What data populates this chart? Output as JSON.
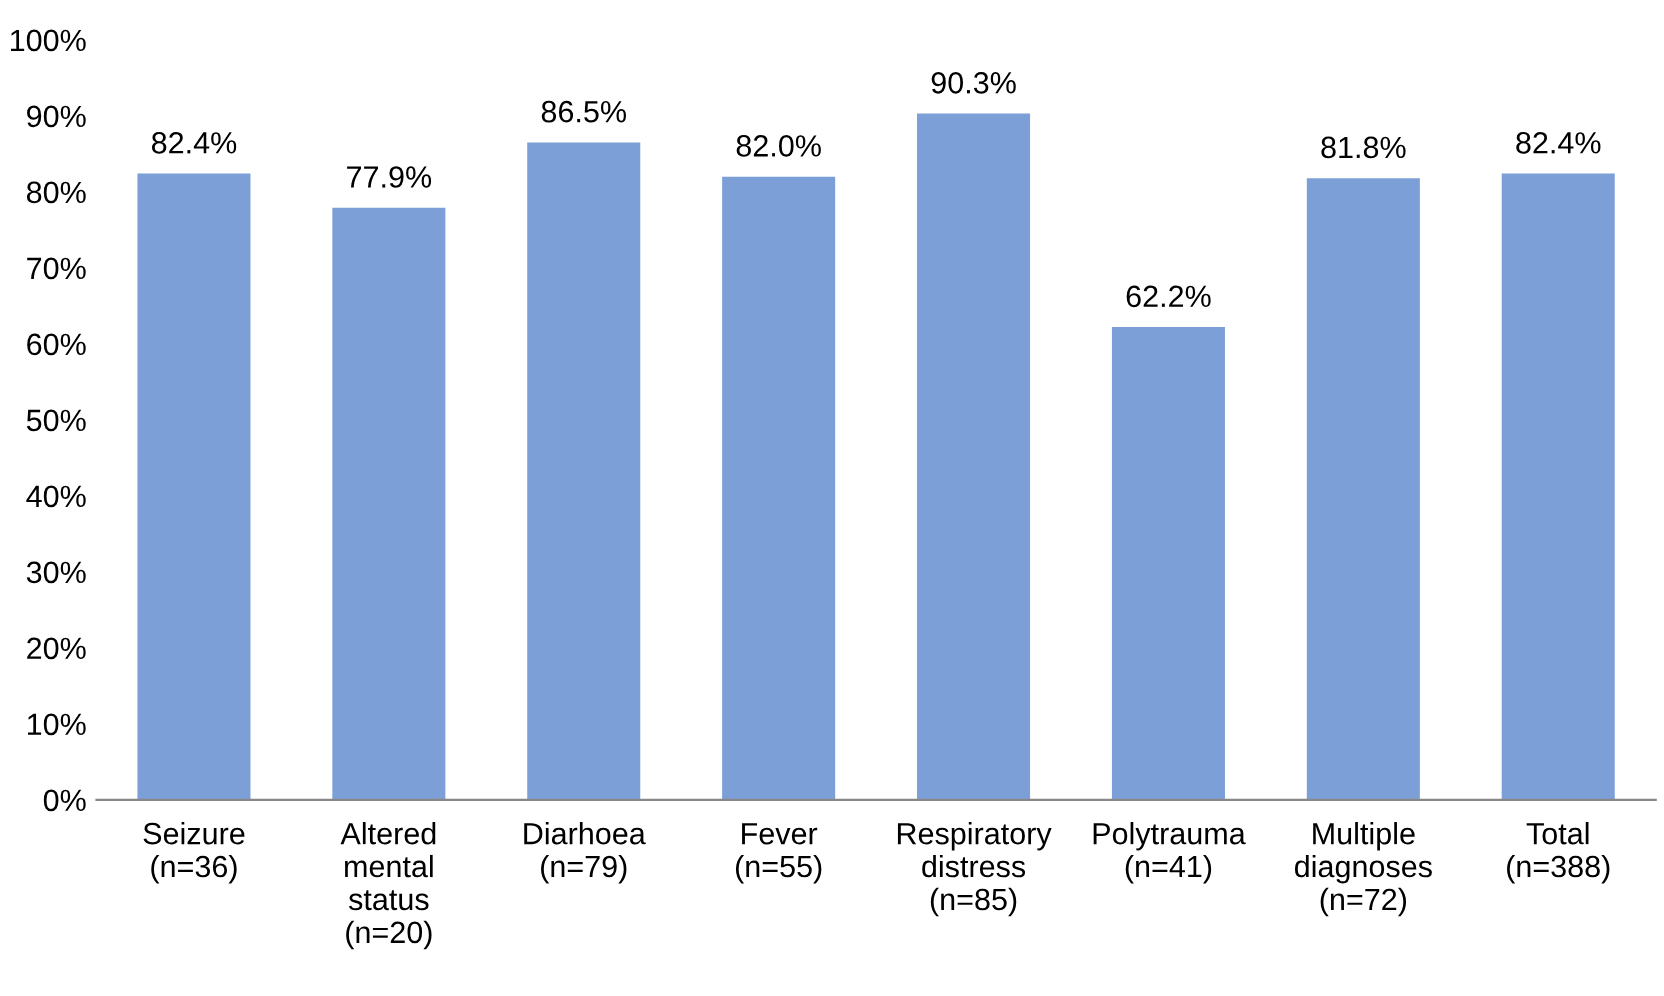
{
  "chart_data": {
    "type": "bar",
    "categories": [
      "Seizure\n(n=36)",
      "Altered\nmental\nstatus\n(n=20)",
      "Diarhoea\n(n=79)",
      "Fever\n(n=55)",
      "Respiratory\ndistress\n(n=85)",
      "Polytrauma\n(n=41)",
      "Multiple\ndiagnoses\n(n=72)",
      "Total\n(n=388)"
    ],
    "values": [
      82.4,
      77.9,
      86.5,
      82.0,
      90.3,
      62.2,
      81.8,
      82.4
    ],
    "value_labels": [
      "82.4%",
      "77.9%",
      "86.5%",
      "82.0%",
      "90.3%",
      "62.2%",
      "81.8%",
      "82.4%"
    ],
    "color": "#7b9fd6",
    "ylim": [
      0,
      100
    ],
    "yticks": [
      {
        "value": 0,
        "label": "0%"
      },
      {
        "value": 10,
        "label": "10%"
      },
      {
        "value": 20,
        "label": "20%"
      },
      {
        "value": 30,
        "label": "30%"
      },
      {
        "value": 40,
        "label": "40%"
      },
      {
        "value": 50,
        "label": "50%"
      },
      {
        "value": 60,
        "label": "60%"
      },
      {
        "value": 70,
        "label": "70%"
      },
      {
        "value": 80,
        "label": "80%"
      },
      {
        "value": 90,
        "label": "90%"
      },
      {
        "value": 100,
        "label": "100%"
      }
    ],
    "grid": false
  }
}
